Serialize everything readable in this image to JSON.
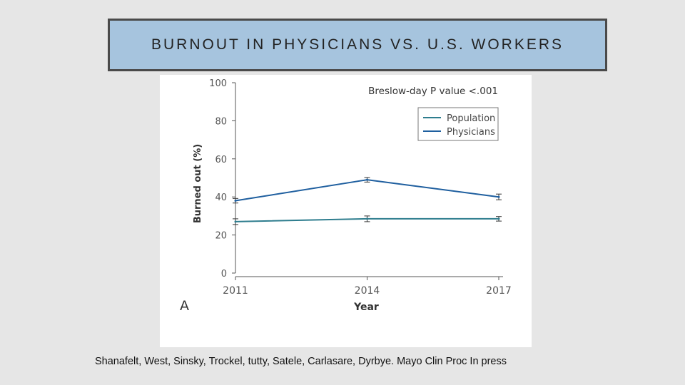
{
  "slide": {
    "title": "BURNOUT IN PHYSICIANS VS. U.S. WORKERS",
    "caption": "Shanafelt, West, Sinsky, Trockel, tutty, Satele, Carlasare, Dyrbye. Mayo Clin Proc In press"
  },
  "colors": {
    "background": "#e6e6e6",
    "title_box": "#a6c4de",
    "title_border": "#4a4a4a",
    "population": "#2e7d8e",
    "physicians": "#1f5f9f"
  },
  "chart_data": {
    "type": "line",
    "panel_label": "A",
    "xlabel": "Year",
    "ylabel": "Burned out (%)",
    "annotation": "Breslow-day P value <.001",
    "x": [
      2011,
      2014,
      2017
    ],
    "xticks": [
      "2011",
      "2014",
      "2017"
    ],
    "ylim": [
      0,
      100
    ],
    "yticks": [
      0,
      20,
      40,
      60,
      80,
      100
    ],
    "legend_position": "top-right",
    "series": [
      {
        "name": "Population",
        "color": "#2e7d8e",
        "values": [
          27,
          28.5,
          28.5
        ],
        "errors": [
          1.5,
          1.5,
          1.2
        ]
      },
      {
        "name": "Physicians",
        "color": "#1f5f9f",
        "values": [
          38,
          49,
          40
        ],
        "errors": [
          1.2,
          1.2,
          1.5
        ]
      }
    ]
  }
}
